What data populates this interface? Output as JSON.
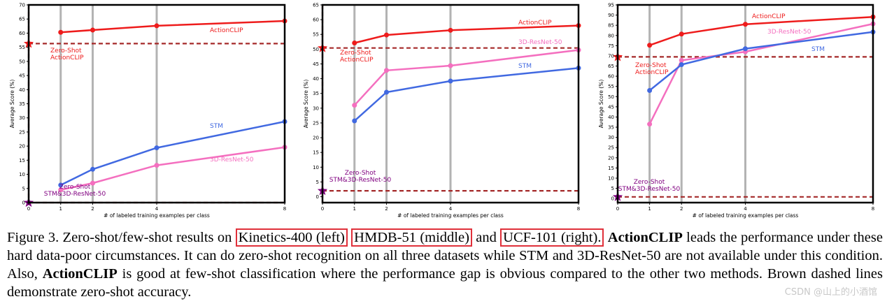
{
  "chart_data": [
    {
      "type": "line",
      "name": "Kinetics-400",
      "ylabel": "Average Score (%)",
      "xlabel": "# of labeled training examples per class",
      "ylim": [
        0,
        70
      ],
      "yticks": [
        0,
        5,
        10,
        15,
        20,
        25,
        30,
        35,
        40,
        45,
        50,
        55,
        60,
        65,
        70
      ],
      "xticks": [
        0,
        1,
        2,
        4,
        8
      ],
      "grid_x": [
        1,
        2,
        4
      ],
      "series": [
        {
          "name": "ActionCLIP",
          "color": "#ee1c1c",
          "x": [
            1,
            2,
            4,
            8
          ],
          "values": [
            60.3,
            61.1,
            62.6,
            64.3
          ]
        },
        {
          "name": "STM",
          "color": "#4169e1",
          "x": [
            1,
            2,
            4,
            8
          ],
          "values": [
            6.2,
            11.8,
            19.4,
            28.7
          ]
        },
        {
          "name": "3D-ResNet-50",
          "color": "#f46fbf",
          "x": [
            1,
            2,
            4,
            8
          ],
          "values": [
            4.5,
            6.9,
            13.2,
            19.6
          ]
        }
      ],
      "zero_shot": [
        {
          "name": "ActionCLIP",
          "value": 56.3,
          "color": "#ee1c1c",
          "label": [
            "Zero-Shot",
            "ActionCLIP"
          ]
        },
        {
          "name": "STM&3D-ResNet-50",
          "value": 0,
          "color": "#800080",
          "label": [
            "Zero-Shot",
            "STM&3D-ResNet-50"
          ]
        }
      ]
    },
    {
      "type": "line",
      "name": "HMDB-51",
      "ylabel": "Average Score (%)",
      "xlabel": "# of labeled training examples per class",
      "ylim": [
        -2,
        65
      ],
      "yticks": [
        0,
        5,
        10,
        15,
        20,
        25,
        30,
        35,
        40,
        45,
        50,
        55,
        60,
        65
      ],
      "xticks": [
        0,
        1,
        2,
        4,
        8
      ],
      "grid_x": [
        1,
        2,
        4
      ],
      "series": [
        {
          "name": "ActionCLIP",
          "color": "#ee1c1c",
          "x": [
            1,
            2,
            4,
            8
          ],
          "values": [
            52.1,
            54.8,
            56.4,
            58.0
          ]
        },
        {
          "name": "3D-ResNet-50",
          "color": "#f46fbf",
          "x": [
            1,
            2,
            4,
            8
          ],
          "values": [
            31.0,
            42.8,
            44.4,
            49.7
          ]
        },
        {
          "name": "STM",
          "color": "#4169e1",
          "x": [
            1,
            2,
            4,
            8
          ],
          "values": [
            25.7,
            35.4,
            39.2,
            43.6
          ]
        }
      ],
      "zero_shot": [
        {
          "name": "ActionCLIP",
          "value": 50.4,
          "color": "#ee1c1c",
          "label": [
            "Zero-Shot",
            "ActionCLIP"
          ]
        },
        {
          "name": "STM&3D-ResNet-50",
          "value": 2.0,
          "color": "#800080",
          "label": [
            "Zero-Shot",
            "STM&3D-ResNet-50"
          ]
        }
      ]
    },
    {
      "type": "line",
      "name": "UCF-101",
      "ylabel": "Average Score (%)",
      "xlabel": "# of labeled training examples per class",
      "ylim": [
        -2,
        95
      ],
      "yticks": [
        0,
        5,
        10,
        15,
        20,
        25,
        30,
        35,
        40,
        45,
        50,
        55,
        60,
        65,
        70,
        75,
        80,
        85,
        90,
        95
      ],
      "xticks": [
        0,
        1,
        2,
        4,
        8
      ],
      "grid_x": [
        1,
        2,
        4
      ],
      "series": [
        {
          "name": "ActionCLIP",
          "color": "#ee1c1c",
          "x": [
            1,
            2,
            4,
            8
          ],
          "values": [
            75.2,
            80.7,
            85.5,
            89.1
          ]
        },
        {
          "name": "3D-ResNet-50",
          "color": "#f46fbf",
          "x": [
            1,
            2,
            4,
            8
          ],
          "values": [
            36.5,
            67.8,
            72.0,
            85.7
          ]
        },
        {
          "name": "STM",
          "color": "#4169e1",
          "x": [
            1,
            2,
            4,
            8
          ],
          "values": [
            53.0,
            65.7,
            73.5,
            81.7
          ]
        }
      ],
      "zero_shot": [
        {
          "name": "ActionCLIP",
          "value": 69.5,
          "color": "#ee1c1c",
          "label": [
            "Zero-Shot",
            "ActionCLIP"
          ]
        },
        {
          "name": "STM&3D-ResNet-50",
          "value": 0.8,
          "color": "#800080",
          "label": [
            "Zero-Shot",
            "STM&3D-ResNet-50"
          ]
        }
      ]
    }
  ],
  "caption": {
    "prefix": "Figure 3. Zero-shot/few-shot results on ",
    "box1": "Kinetics-400 (left)",
    "box2": "HMDB-51 (middle)",
    "and": " and ",
    "box3": "UCF-101 (right).",
    "bold1": "ActionCLIP",
    "text1": " leads the performance under these hard data-poor circumstances.  It can do zero-shot recognition on all three datasets while STM and 3D-ResNet-50 are not available under this condition. Also, ",
    "bold2": "ActionCLIP",
    "text2": " is good at few-shot classification where the performance gap is obvious compared to the other two methods. Brown dashed lines demonstrate zero-shot accuracy."
  },
  "watermark": "CSDN @山上的小酒馆",
  "colors": {
    "zero_line": "#a52a2a",
    "grid": "#b3b3b3",
    "axis": "#000000"
  }
}
